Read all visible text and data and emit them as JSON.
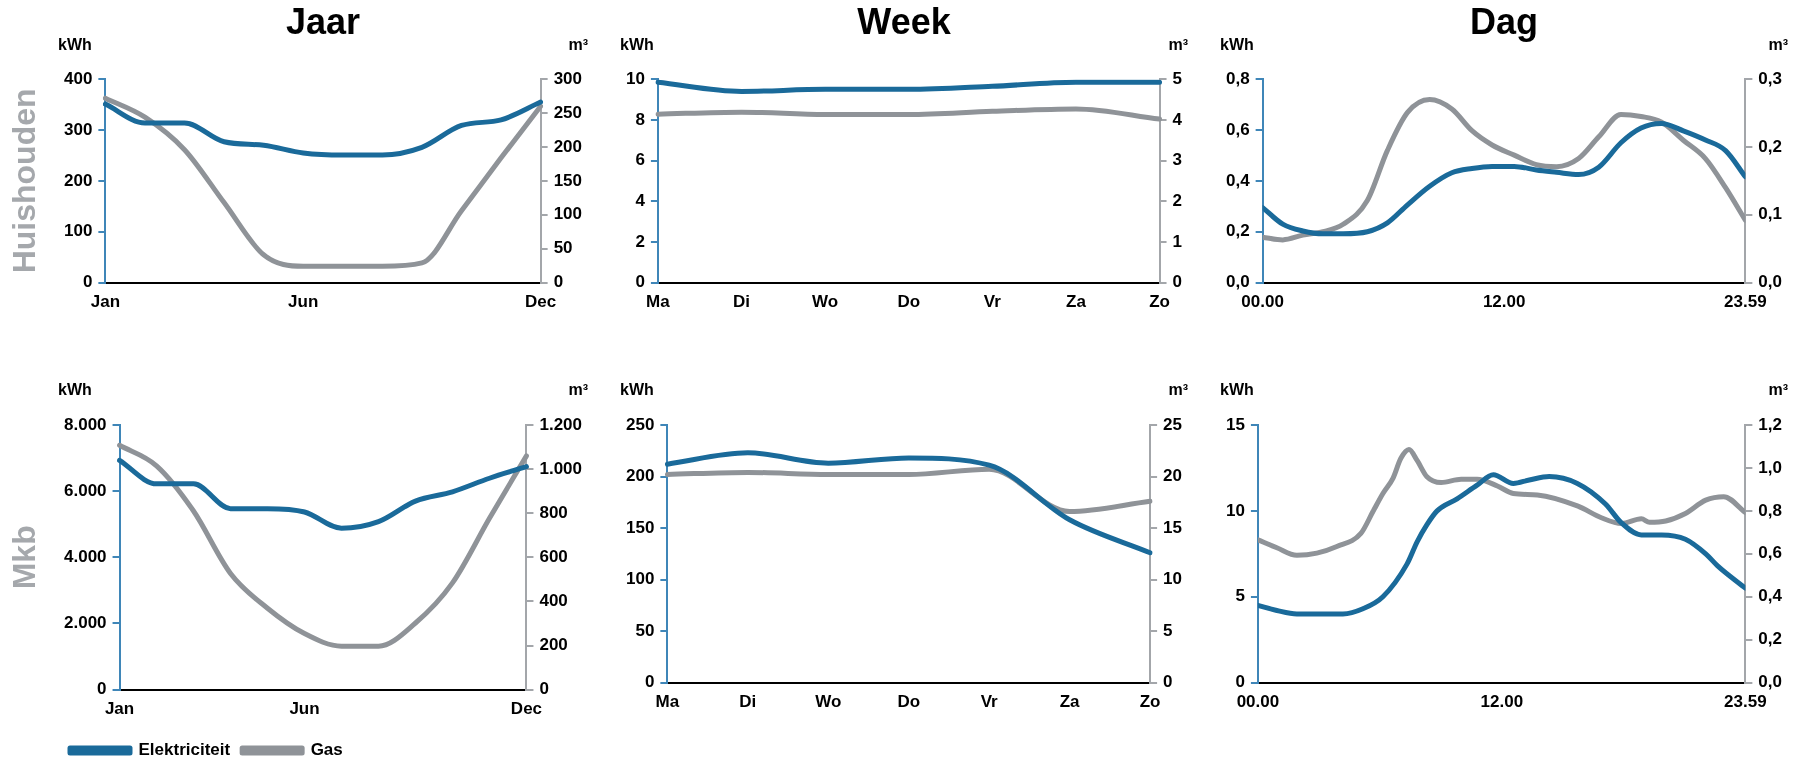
{
  "chart_data": [
    {
      "type": "line",
      "title": "Jaar",
      "ylabel": "kWh",
      "y2label": "m³",
      "annotations": [
        "Huishouden"
      ],
      "categories": [
        "Jan",
        null,
        null,
        null,
        null,
        "Jun",
        null,
        null,
        null,
        null,
        null,
        "Dec"
      ],
      "marker": "none",
      "series": [
        {
          "color": "#1a6a9a",
          "values": [
            351,
            314,
            314,
            277,
            270,
            255,
            251,
            251,
            266,
            309,
            320,
            355
          ]
        },
        {
          "color": "#8f9398",
          "axis": "y2",
          "values": [
            272,
            244,
            196,
            118,
            41,
            24,
            24,
            24,
            29,
            106,
            184,
            260
          ]
        }
      ],
      "ylim": [
        0,
        400
      ],
      "yticks": [
        0,
        100,
        200,
        300,
        400
      ],
      "y2lim": [
        0,
        300
      ],
      "y2ticks": [
        0,
        50,
        100,
        150,
        200,
        250,
        300
      ]
    },
    {
      "type": "line",
      "title": "Week",
      "ylabel": "kWh",
      "y2label": "m³",
      "categories": [
        "Ma",
        "Di",
        "Wo",
        "Do",
        "Vr",
        "Za",
        "Zo"
      ],
      "marker": "none",
      "series": [
        {
          "color": "#1a6a9a",
          "values": [
            9.85,
            9.4,
            9.5,
            9.5,
            9.65,
            9.85,
            9.85
          ]
        },
        {
          "color": "#8f9398",
          "axis": "y2",
          "values": [
            4.14,
            4.19,
            4.13,
            4.13,
            4.21,
            4.27,
            4.02
          ]
        }
      ],
      "ylim": [
        0,
        10
      ],
      "yticks": [
        0,
        2,
        4,
        6,
        8,
        10
      ],
      "y2lim": [
        0,
        5
      ],
      "y2ticks": [
        0,
        1,
        2,
        3,
        4,
        5
      ]
    },
    {
      "type": "line",
      "title": "Dag",
      "ylabel": "kWh",
      "y2label": "m³",
      "marker": "none",
      "x": [
        "--01-01T00:00",
        "--01-01T01:00",
        "--01-01T02:00",
        "--01-01T03:00",
        "--01-01T04:00",
        "--01-01T05:12",
        "--01-01T06:12",
        "--01-01T07:12",
        "--01-01T08:18",
        "--01-01T09:24",
        "--01-01T10:24",
        "--01-01T11:24",
        "--01-01T12:30",
        "--01-01T13:36",
        "--01-01T14:36",
        "--01-01T15:42",
        "--01-01T16:42",
        "--01-01T17:48",
        "--01-01T18:48",
        "--01-01T19:48",
        "--01-01T20:54",
        "--01-01T22:00",
        "--01-01T23:00",
        "--01-01T23:59"
      ],
      "series": [
        {
          "color": "#1a6a9a",
          "values": [
            0.295,
            0.23,
            0.203,
            0.192,
            0.192,
            0.2,
            0.235,
            0.306,
            0.379,
            0.432,
            0.449,
            0.457,
            0.457,
            0.443,
            0.434,
            0.425,
            0.454,
            0.55,
            0.608,
            0.626,
            0.597,
            0.561,
            0.519,
            0.416
          ]
        },
        {
          "color": "#8f9398",
          "axis": "y2",
          "values": [
            0.067,
            0.063,
            0.07,
            0.075,
            0.086,
            0.121,
            0.195,
            0.251,
            0.27,
            0.256,
            0.224,
            0.203,
            0.188,
            0.174,
            0.171,
            0.183,
            0.215,
            0.248,
            0.245,
            0.237,
            0.21,
            0.183,
            0.14,
            0.092
          ]
        }
      ],
      "xlim": [
        "--01-01T00:00",
        "--01-01T23:59"
      ],
      "xticks": [
        {
          "value": "--01-01T00:00",
          "label": "00.00"
        },
        {
          "value": "--01-01T12:00",
          "label": "12.00"
        },
        {
          "value": "--01-01T23:59",
          "label": "23.59"
        }
      ],
      "ylim": [
        0,
        0.8
      ],
      "yticks": [
        {
          "value": 0,
          "label": "0,0"
        },
        {
          "value": 0.2,
          "label": "0,2"
        },
        {
          "value": 0.4,
          "label": "0,4"
        },
        {
          "value": 0.6,
          "label": "0,6"
        },
        {
          "value": 0.8,
          "label": "0,8"
        }
      ],
      "y2lim": [
        0,
        0.3
      ],
      "y2ticks": [
        {
          "value": 0,
          "label": "0,0"
        },
        {
          "value": 0.1,
          "label": "0,1"
        },
        {
          "value": 0.2,
          "label": "0,2"
        },
        {
          "value": 0.3,
          "label": "0,3"
        }
      ]
    },
    {
      "type": "line",
      "ylabel": "kWh",
      "y2label": "m³",
      "annotations": [
        "Mkb"
      ],
      "categories": [
        "Jan",
        null,
        null,
        null,
        null,
        "Jun",
        null,
        null,
        null,
        null,
        null,
        "Dec"
      ],
      "marker": "none",
      "legend": "bottom",
      "series": [
        {
          "name": "Elektriciteit",
          "color": "#1a6a9a",
          "values": [
            6930,
            6220,
            6220,
            5470,
            5470,
            5370,
            4880,
            5080,
            5700,
            5980,
            6390,
            6740
          ]
        },
        {
          "name": "Gas",
          "color": "#8f9398",
          "axis": "y2",
          "values": [
            1108,
            1015,
            810,
            527,
            369,
            254,
            197,
            197,
            302,
            484,
            777,
            1060
          ]
        }
      ],
      "ylim": [
        0,
        8000
      ],
      "yticks": [
        0,
        {
          "value": 2000,
          "label": "2.000"
        },
        {
          "value": 4000,
          "label": "4.000"
        },
        {
          "value": 6000,
          "label": "6.000"
        },
        {
          "value": 8000,
          "label": "8.000"
        }
      ],
      "y2lim": [
        0,
        1200
      ],
      "y2ticks": [
        0,
        200,
        400,
        600,
        800,
        {
          "value": 1000,
          "label": "1.000"
        },
        {
          "value": 1200,
          "label": "1.200"
        }
      ]
    },
    {
      "type": "line",
      "ylabel": "kWh",
      "y2label": "m³",
      "categories": [
        "Ma",
        "Di",
        "Wo",
        "Do",
        "Vr",
        "Za",
        "Zo"
      ],
      "marker": "none",
      "series": [
        {
          "color": "#1a6a9a",
          "values": [
            212,
            223,
            213,
            218,
            211,
            158,
            126
          ]
        },
        {
          "color": "#8f9398",
          "axis": "y2",
          "values": [
            20.2,
            20.4,
            20.2,
            20.2,
            20.7,
            16.6,
            17.6
          ]
        }
      ],
      "ylim": [
        0,
        250
      ],
      "yticks": [
        0,
        50,
        100,
        150,
        200,
        250
      ],
      "y2lim": [
        0,
        25
      ],
      "y2ticks": [
        0,
        5,
        10,
        15,
        20,
        25
      ]
    },
    {
      "type": "line",
      "ylabel": "kWh",
      "y2label": "m³",
      "marker": "none",
      "series": [
        {
          "color": "#1a6a9a",
          "x": [
            "--01-01T00:00",
            "--01-01T00:56",
            "--01-01T01:55",
            "--01-01T02:54",
            "--01-01T04:11",
            "--01-01T05:10",
            "--01-01T06:09",
            "--01-01T07:20",
            "--01-01T07:50",
            "--01-01T08:19",
            "--01-01T08:49",
            "--01-01T09:48",
            "--01-01T10:47",
            "--01-01T11:35",
            "--01-01T12:34",
            "--01-01T13:21",
            "--01-01T14:20",
            "--01-01T15:43",
            "--01-01T17:06",
            "--01-01T17:53",
            "--01-01T18:52",
            "--01-01T19:52",
            "--01-01T21:02",
            "--01-01T22:02",
            "--01-01T22:37",
            "--01-01T23:59"
          ],
          "values": [
            4.5,
            4.2,
            4.0,
            4.0,
            4.0,
            4.3,
            5.0,
            6.9,
            8.2,
            9.2,
            10.0,
            10.7,
            11.5,
            12.1,
            11.6,
            11.8,
            12.0,
            11.6,
            10.4,
            9.3,
            8.6,
            8.6,
            8.35,
            7.5,
            6.8,
            5.5
          ]
        },
        {
          "color": "#8f9398",
          "axis": "y2",
          "x": [
            "--01-01T00:00",
            "--01-01T00:56",
            "--01-01T01:55",
            "--01-01T02:54",
            "--01-01T03:53",
            "--01-01T05:04",
            "--01-01T05:40",
            "--01-01T06:09",
            "--01-01T06:39",
            "--01-01T07:02",
            "--01-01T07:26",
            "--01-01T07:50",
            "--01-01T08:19",
            "--01-01T09:01",
            "--01-01T10:00",
            "--01-01T10:47",
            "--01-01T11:47",
            "--01-01T12:34",
            "--01-01T13:45",
            "--01-01T15:43",
            "--01-01T16:54",
            "--01-01T17:53",
            "--01-01T18:52",
            "--01-01T19:16",
            "--01-01T20:04",
            "--01-01T21:02",
            "--01-01T22:02",
            "--01-01T22:55",
            "--01-01T23:59"
          ],
          "values": [
            0.665,
            0.628,
            0.593,
            0.603,
            0.634,
            0.695,
            0.798,
            0.881,
            0.953,
            1.045,
            1.086,
            1.035,
            0.959,
            0.932,
            0.947,
            0.947,
            0.916,
            0.881,
            0.874,
            0.823,
            0.768,
            0.741,
            0.763,
            0.747,
            0.753,
            0.788,
            0.85,
            0.866,
            0.792
          ]
        }
      ],
      "xlim": [
        "--01-01T00:00",
        "--01-01T23:59"
      ],
      "xticks": [
        {
          "value": "--01-01T00:00",
          "label": "00.00"
        },
        {
          "value": "--01-01T12:00",
          "label": "12.00"
        },
        {
          "value": "--01-01T23:59",
          "label": "23.59"
        }
      ],
      "ylim": [
        0,
        15
      ],
      "yticks": [
        0,
        5,
        10,
        15
      ],
      "y2lim": [
        0,
        1.2
      ],
      "y2ticks": [
        {
          "value": 0,
          "label": "0,0"
        },
        {
          "value": 0.2,
          "label": "0,2"
        },
        {
          "value": 0.4,
          "label": "0,4"
        },
        {
          "value": 0.6,
          "label": "0,6"
        },
        {
          "value": 0.8,
          "label": "0,8"
        },
        {
          "value": 1,
          "label": "1,0"
        },
        {
          "value": 1.2,
          "label": "1,2"
        }
      ]
    }
  ]
}
